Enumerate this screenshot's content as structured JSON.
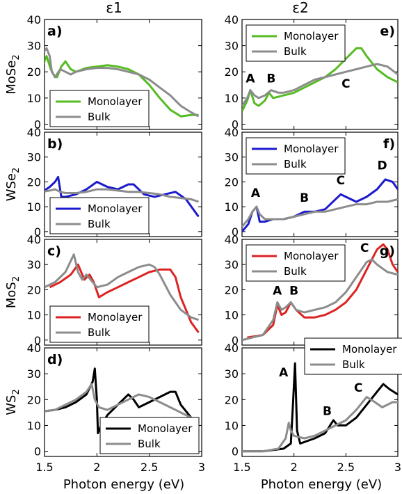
{
  "figure": {
    "column_titles": [
      "ε1",
      "ε2"
    ],
    "xlabel": "Photon energy (eV)"
  },
  "chart_data": [
    {
      "type": "line",
      "panel": "a)",
      "ylabel": "MoSe2",
      "ylabel_main": "MoSe",
      "ylabel_sub": "2",
      "xlim": [
        1.5,
        3.0
      ],
      "ylim": [
        -2,
        40
      ],
      "xticks": [
        1.5,
        2,
        2.5,
        3
      ],
      "yticks": [
        0,
        10,
        20,
        30,
        40
      ],
      "xtick_labels": [],
      "legend_loc": "lower-left",
      "peak_labels": [],
      "series": [
        {
          "name": "Monolayer",
          "color": "#55bb22",
          "x": [
            1.48,
            1.52,
            1.56,
            1.6,
            1.62,
            1.66,
            1.7,
            1.75,
            1.8,
            1.9,
            2.0,
            2.1,
            2.2,
            2.3,
            2.4,
            2.5,
            2.6,
            2.7,
            2.8,
            2.9,
            2.97
          ],
          "y": [
            22,
            26,
            21,
            18,
            18,
            22,
            24,
            21,
            20,
            21.5,
            22,
            22.5,
            22,
            21,
            19,
            15,
            10,
            5.5,
            3,
            3.5,
            3.5
          ]
        },
        {
          "name": "Bulk",
          "color": "#8c8c8c",
          "x": [
            1.48,
            1.52,
            1.55,
            1.57,
            1.6,
            1.65,
            1.7,
            1.75,
            1.8,
            1.9,
            2.0,
            2.1,
            2.2,
            2.3,
            2.4,
            2.5,
            2.6,
            2.7,
            2.8,
            2.9,
            2.97
          ],
          "y": [
            27,
            29,
            26,
            20,
            18,
            21,
            20,
            19,
            20,
            21,
            21.5,
            21.5,
            21,
            20,
            19,
            17,
            14,
            11,
            7,
            4.5,
            3
          ]
        }
      ]
    },
    {
      "type": "line",
      "panel": "b)",
      "ylabel": "WSe2",
      "ylabel_main": "WSe",
      "ylabel_sub": "2",
      "xlim": [
        1.5,
        3.0
      ],
      "ylim": [
        -2,
        40
      ],
      "xticks": [
        1.5,
        2,
        2.5,
        3
      ],
      "yticks": [
        0,
        10,
        20,
        30,
        40
      ],
      "xtick_labels": [],
      "legend_loc": "lower-left",
      "peak_labels": [],
      "series": [
        {
          "name": "Monolayer",
          "color": "#1a1acc",
          "x": [
            1.48,
            1.55,
            1.6,
            1.63,
            1.66,
            1.7,
            1.8,
            1.9,
            2.0,
            2.1,
            2.2,
            2.3,
            2.35,
            2.45,
            2.55,
            2.65,
            2.75,
            2.85,
            2.97
          ],
          "y": [
            16,
            18,
            20,
            22,
            14,
            14,
            15,
            17,
            20,
            18,
            17,
            19,
            19,
            15,
            14,
            15,
            16,
            13,
            6
          ]
        },
        {
          "name": "Bulk",
          "color": "#8c8c8c",
          "x": [
            1.48,
            1.55,
            1.6,
            1.65,
            1.7,
            1.8,
            1.9,
            2.0,
            2.1,
            2.2,
            2.3,
            2.4,
            2.5,
            2.6,
            2.7,
            2.8,
            2.9,
            2.97
          ],
          "y": [
            16,
            16.5,
            17,
            16,
            15.5,
            15.5,
            16,
            17,
            17,
            16.5,
            16,
            16,
            15.5,
            15,
            14,
            13.5,
            13,
            12
          ]
        }
      ]
    },
    {
      "type": "line",
      "panel": "c)",
      "ylabel": "MoS2",
      "ylabel_main": "MoS",
      "ylabel_sub": "2",
      "xlim": [
        1.5,
        3.0
      ],
      "ylim": [
        -2,
        40
      ],
      "xticks": [
        1.5,
        2,
        2.5,
        3
      ],
      "yticks": [
        0,
        10,
        20,
        30,
        40
      ],
      "xtick_labels": [],
      "legend_loc": "lower-left",
      "peak_labels": [],
      "series": [
        {
          "name": "Monolayer",
          "color": "#dd2222",
          "x": [
            1.55,
            1.65,
            1.75,
            1.82,
            1.88,
            1.93,
            1.97,
            2.02,
            2.1,
            2.2,
            2.3,
            2.4,
            2.5,
            2.6,
            2.7,
            2.75,
            2.8,
            2.85,
            2.9,
            2.97
          ],
          "y": [
            21,
            23,
            26,
            30,
            24,
            26,
            23,
            17,
            19,
            21,
            23,
            25,
            27,
            28,
            28,
            25,
            17,
            12,
            7,
            3
          ]
        },
        {
          "name": "Bulk",
          "color": "#8c8c8c",
          "x": [
            1.5,
            1.6,
            1.7,
            1.78,
            1.82,
            1.86,
            1.9,
            1.96,
            2.0,
            2.1,
            2.2,
            2.3,
            2.4,
            2.5,
            2.55,
            2.6,
            2.7,
            2.8,
            2.9,
            2.97
          ],
          "y": [
            21,
            23,
            27,
            34,
            27,
            24,
            26,
            23,
            21,
            22,
            25,
            27,
            29,
            30,
            29,
            26,
            18,
            12,
            9,
            8
          ]
        }
      ]
    },
    {
      "type": "line",
      "panel": "d)",
      "ylabel": "WS2",
      "ylabel_main": "WS",
      "ylabel_sub": "2",
      "xlim": [
        1.5,
        3.0
      ],
      "ylim": [
        -2,
        40
      ],
      "xticks": [
        1.5,
        2,
        2.5,
        3
      ],
      "yticks": [
        0,
        10,
        20,
        30,
        40
      ],
      "xtick_labels": [
        "1.5",
        "2",
        "2.5",
        "3"
      ],
      "legend_loc": "lower-right",
      "peak_labels": [],
      "series": [
        {
          "name": "Monolayer",
          "color": "#000000",
          "x": [
            1.5,
            1.6,
            1.7,
            1.8,
            1.9,
            1.96,
            1.98,
            2.0,
            2.01,
            2.04,
            2.1,
            2.2,
            2.3,
            2.35,
            2.4,
            2.5,
            2.6,
            2.7,
            2.75,
            2.8,
            2.9,
            2.97
          ],
          "y": [
            15.5,
            16,
            17,
            19,
            22,
            27,
            32,
            20,
            7,
            10,
            14,
            18,
            22,
            20,
            17,
            19,
            21,
            23,
            23,
            18,
            13,
            11
          ]
        },
        {
          "name": "Bulk",
          "color": "#8c8c8c",
          "x": [
            1.5,
            1.6,
            1.7,
            1.8,
            1.9,
            1.95,
            1.98,
            2.02,
            2.1,
            2.2,
            2.3,
            2.4,
            2.5,
            2.6,
            2.7,
            2.8,
            2.9,
            2.97
          ],
          "y": [
            15.5,
            16,
            18,
            20,
            23,
            26,
            20,
            17,
            16,
            18,
            20,
            22,
            21,
            19,
            17,
            15,
            13,
            10
          ]
        }
      ]
    },
    {
      "type": "line",
      "panel": "e)",
      "ylabel": "",
      "xlim": [
        1.5,
        3.0
      ],
      "ylim": [
        -2,
        40
      ],
      "xticks": [
        1.5,
        2,
        2.5,
        3
      ],
      "yticks": [
        0,
        10,
        20,
        30,
        40
      ],
      "xtick_labels": [],
      "legend_loc": "top-left",
      "peak_labels": [
        {
          "text": "A",
          "x": 1.58,
          "y": 16
        },
        {
          "text": "B",
          "x": 1.78,
          "y": 16
        },
        {
          "text": "C",
          "x": 2.5,
          "y": 14
        }
      ],
      "series": [
        {
          "name": "Monolayer",
          "color": "#55bb22",
          "x": [
            1.5,
            1.55,
            1.58,
            1.62,
            1.66,
            1.72,
            1.76,
            1.8,
            1.9,
            2.0,
            2.1,
            2.2,
            2.3,
            2.4,
            2.5,
            2.6,
            2.65,
            2.7,
            2.8,
            2.9,
            3.0
          ],
          "y": [
            5,
            9,
            13,
            8,
            7,
            9,
            12,
            10,
            11,
            12,
            14,
            16,
            18,
            21,
            25,
            29,
            29,
            26,
            21,
            18,
            16
          ]
        },
        {
          "name": "Bulk",
          "color": "#8c8c8c",
          "x": [
            1.5,
            1.55,
            1.58,
            1.62,
            1.66,
            1.72,
            1.78,
            1.85,
            1.9,
            2.0,
            2.1,
            2.2,
            2.3,
            2.4,
            2.5,
            2.6,
            2.7,
            2.8,
            2.9,
            3.0
          ],
          "y": [
            7,
            10,
            13,
            11,
            10,
            11,
            13,
            12,
            12,
            13,
            15,
            17,
            18,
            19,
            20,
            21,
            22,
            23,
            22,
            19
          ]
        }
      ]
    },
    {
      "type": "line",
      "panel": "f)",
      "ylabel": "",
      "xlim": [
        1.5,
        3.0
      ],
      "ylim": [
        -2,
        40
      ],
      "xticks": [
        1.5,
        2,
        2.5,
        3
      ],
      "yticks": [
        0,
        10,
        20,
        30,
        40
      ],
      "xtick_labels": [],
      "legend_loc": "top-left",
      "peak_labels": [
        {
          "text": "A",
          "x": 1.63,
          "y": 14
        },
        {
          "text": "B",
          "x": 2.1,
          "y": 12
        },
        {
          "text": "C",
          "x": 2.45,
          "y": 19
        },
        {
          "text": "D",
          "x": 2.85,
          "y": 25
        }
      ],
      "series": [
        {
          "name": "Monolayer",
          "color": "#1a1acc",
          "x": [
            1.5,
            1.56,
            1.6,
            1.64,
            1.67,
            1.72,
            1.8,
            1.9,
            2.0,
            2.1,
            2.2,
            2.3,
            2.4,
            2.45,
            2.5,
            2.6,
            2.7,
            2.8,
            2.88,
            2.95,
            3.0
          ],
          "y": [
            0,
            3,
            8,
            10,
            4,
            4,
            5,
            5,
            6,
            8,
            8,
            9,
            13,
            15,
            14,
            12,
            14,
            17,
            21,
            20,
            17
          ]
        },
        {
          "name": "Bulk",
          "color": "#8c8c8c",
          "x": [
            1.5,
            1.56,
            1.6,
            1.64,
            1.67,
            1.72,
            1.8,
            1.9,
            2.0,
            2.1,
            2.2,
            2.3,
            2.4,
            2.5,
            2.6,
            2.7,
            2.8,
            2.9,
            3.0
          ],
          "y": [
            2,
            5,
            8,
            10,
            7,
            5,
            5,
            5,
            6,
            7,
            8,
            8,
            9,
            10,
            11,
            11,
            12,
            12,
            13
          ]
        }
      ]
    },
    {
      "type": "line",
      "panel": "g)",
      "ylabel": "",
      "xlim": [
        1.5,
        3.0
      ],
      "ylim": [
        -2,
        40
      ],
      "xticks": [
        1.5,
        2,
        2.5,
        3
      ],
      "yticks": [
        0,
        10,
        20,
        30,
        40
      ],
      "xtick_labels": [],
      "legend_loc": "top-left",
      "peak_labels": [
        {
          "text": "A",
          "x": 1.84,
          "y": 18
        },
        {
          "text": "B",
          "x": 2.0,
          "y": 18
        },
        {
          "text": "C",
          "x": 2.68,
          "y": 35
        }
      ],
      "series": [
        {
          "name": "Monolayer",
          "color": "#dd2222",
          "x": [
            1.55,
            1.7,
            1.8,
            1.84,
            1.88,
            1.92,
            1.97,
            2.02,
            2.1,
            2.2,
            2.3,
            2.4,
            2.5,
            2.6,
            2.7,
            2.8,
            2.86,
            2.9,
            2.95,
            3.0
          ],
          "y": [
            1,
            2,
            6,
            14,
            10,
            11,
            15,
            12,
            9,
            9,
            10,
            12,
            15,
            20,
            28,
            36,
            38,
            36,
            30,
            27
          ]
        },
        {
          "name": "Bulk",
          "color": "#8c8c8c",
          "x": [
            1.5,
            1.6,
            1.7,
            1.8,
            1.84,
            1.88,
            1.92,
            1.97,
            2.02,
            2.1,
            2.2,
            2.3,
            2.4,
            2.5,
            2.6,
            2.7,
            2.75,
            2.8,
            2.9,
            3.0
          ],
          "y": [
            0,
            1,
            2,
            8,
            15,
            12,
            13,
            15,
            12,
            11,
            12,
            13,
            15,
            19,
            25,
            31,
            32,
            30,
            27,
            26
          ]
        }
      ]
    },
    {
      "type": "line",
      "panel": "h)",
      "ylabel": "",
      "xlim": [
        1.5,
        3.0
      ],
      "ylim": [
        -2,
        40
      ],
      "xticks": [
        1.5,
        2,
        2.5,
        3
      ],
      "yticks": [
        0,
        10,
        20,
        30,
        40
      ],
      "xtick_labels": [
        "1.5",
        "2",
        "2.5",
        "3"
      ],
      "legend_loc": "top-right",
      "peak_labels": [
        {
          "text": "A",
          "x": 1.9,
          "y": 29
        },
        {
          "text": "B",
          "x": 2.32,
          "y": 14
        },
        {
          "text": "C",
          "x": 2.62,
          "y": 23
        }
      ],
      "series": [
        {
          "name": "Monolayer",
          "color": "#000000",
          "x": [
            1.5,
            1.7,
            1.9,
            1.97,
            1.99,
            2.01,
            2.03,
            2.06,
            2.2,
            2.3,
            2.38,
            2.42,
            2.5,
            2.6,
            2.7,
            2.8,
            2.86,
            2.92,
            3.0
          ],
          "y": [
            0,
            0,
            1,
            3,
            18,
            34,
            8,
            3,
            5,
            7,
            12,
            10,
            10,
            13,
            18,
            23,
            26,
            24,
            22
          ]
        },
        {
          "name": "Bulk",
          "color": "#8c8c8c",
          "x": [
            1.5,
            1.7,
            1.85,
            1.92,
            1.95,
            1.97,
            2.0,
            2.1,
            2.2,
            2.3,
            2.4,
            2.5,
            2.6,
            2.7,
            2.78,
            2.85,
            2.95,
            3.0
          ],
          "y": [
            0,
            0,
            1,
            5,
            11,
            8,
            6,
            5,
            6,
            8,
            10,
            12,
            16,
            21,
            19,
            17,
            19,
            19
          ]
        }
      ]
    }
  ]
}
